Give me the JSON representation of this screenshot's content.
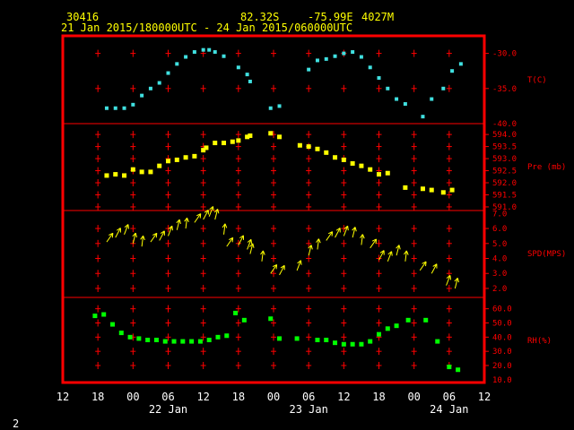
{
  "header": {
    "station": "30416",
    "lat": "82.32S",
    "lon": "-75.99E",
    "elev": "4027M",
    "period": "21 Jan 2015/180000UTC - 24 Jan 2015/060000UTC"
  },
  "page_number": "2",
  "colors": {
    "frame": "#ff0000",
    "temperature": "#40e0e0",
    "pressure": "#ffff00",
    "wind": "#ffff00",
    "rh": "#00ff00",
    "text": "#ffffff",
    "header_text": "#ffff00"
  },
  "chart_data": {
    "type": "scatter",
    "x_axis": {
      "range_hours": [
        -6,
        66
      ],
      "tick_labels": [
        "12",
        "18",
        "00",
        "06",
        "12",
        "18",
        "00",
        "06",
        "12",
        "18",
        "00",
        "06",
        "12"
      ],
      "date_labels": [
        "22 Jan",
        "23 Jan",
        "24 Jan"
      ]
    },
    "panels": [
      {
        "name": "T(C)",
        "range": [
          -40,
          -27.5
        ],
        "ticks": [
          "-30.0",
          "-35.0",
          "-40.0"
        ],
        "tick_values": [
          -30,
          -35,
          -40
        ],
        "points": [
          [
            1.5,
            -37.8
          ],
          [
            3,
            -37.8
          ],
          [
            4.5,
            -37.8
          ],
          [
            6,
            -37.3
          ],
          [
            7.5,
            -36.0
          ],
          [
            9,
            -35.0
          ],
          [
            10.5,
            -34.2
          ],
          [
            12,
            -32.8
          ],
          [
            13.5,
            -31.5
          ],
          [
            15,
            -30.5
          ],
          [
            16.5,
            -29.8
          ],
          [
            18,
            -29.5
          ],
          [
            19,
            -29.5
          ],
          [
            20,
            -29.8
          ],
          [
            21.5,
            -30.4
          ],
          [
            24,
            -32
          ],
          [
            25.5,
            -33
          ],
          [
            26,
            -34
          ],
          [
            29.5,
            -37.8
          ],
          [
            31,
            -37.5
          ],
          [
            36,
            -32.3
          ],
          [
            37.5,
            -31
          ],
          [
            39,
            -30.8
          ],
          [
            40.5,
            -30.4
          ],
          [
            42,
            -30
          ],
          [
            43.5,
            -29.8
          ],
          [
            45,
            -30.5
          ],
          [
            46.5,
            -32
          ],
          [
            48,
            -33.5
          ],
          [
            49.5,
            -35
          ],
          [
            51,
            -36.5
          ],
          [
            52.5,
            -37.2
          ],
          [
            55.5,
            -39
          ],
          [
            57,
            -36.5
          ],
          [
            59,
            -35
          ],
          [
            60.5,
            -32.5
          ],
          [
            62,
            -31.5
          ]
        ]
      },
      {
        "name": "Pre (mb)",
        "range": [
          590.85,
          594.45
        ],
        "ticks": [
          "594.0",
          "593.5",
          "593.0",
          "592.5",
          "592.0",
          "591.5",
          "591.0"
        ],
        "tick_values": [
          594,
          593.5,
          593,
          592.5,
          592,
          591.5,
          591
        ],
        "points": [
          [
            1.5,
            592.3
          ],
          [
            3,
            592.35
          ],
          [
            4.5,
            592.3
          ],
          [
            6,
            592.55
          ],
          [
            7.5,
            592.45
          ],
          [
            9,
            592.45
          ],
          [
            10.5,
            592.7
          ],
          [
            12,
            592.9
          ],
          [
            13.5,
            592.95
          ],
          [
            15,
            593.05
          ],
          [
            16.5,
            593.1
          ],
          [
            18,
            593.35
          ],
          [
            18.5,
            593.45
          ],
          [
            20,
            593.65
          ],
          [
            21.5,
            593.65
          ],
          [
            23,
            593.7
          ],
          [
            24,
            593.75
          ],
          [
            25.5,
            593.9
          ],
          [
            26,
            593.95
          ],
          [
            29.5,
            594.05
          ],
          [
            31,
            593.9
          ],
          [
            34.5,
            593.55
          ],
          [
            36,
            593.5
          ],
          [
            37.5,
            593.4
          ],
          [
            39,
            593.25
          ],
          [
            40.5,
            593.05
          ],
          [
            42,
            592.95
          ],
          [
            43.5,
            592.8
          ],
          [
            45,
            592.7
          ],
          [
            46.5,
            592.55
          ],
          [
            48,
            592.35
          ],
          [
            49.5,
            592.4
          ],
          [
            52.5,
            591.8
          ],
          [
            55.5,
            591.75
          ],
          [
            57,
            591.7
          ],
          [
            59,
            591.6
          ],
          [
            60.5,
            591.7
          ]
        ]
      },
      {
        "name": "SPD(MPS)",
        "range": [
          1.4,
          7.2
        ],
        "ticks": [
          "7.0",
          "6.0",
          "5.0",
          "4.0",
          "3.0",
          "2.0"
        ],
        "tick_values": [
          7,
          6,
          5,
          4,
          3,
          2
        ],
        "points": [
          [
            1.5,
            5.1
          ],
          [
            3,
            5.4
          ],
          [
            4.5,
            5.6
          ],
          [
            6,
            5.0
          ],
          [
            7.5,
            4.8
          ],
          [
            9,
            5.1
          ],
          [
            10.5,
            5.2
          ],
          [
            12,
            5.5
          ],
          [
            13.5,
            5.9
          ],
          [
            15,
            6.0
          ],
          [
            16.5,
            6.4
          ],
          [
            18,
            6.6
          ],
          [
            19,
            6.8
          ],
          [
            20,
            6.6
          ],
          [
            21.5,
            5.6
          ],
          [
            22,
            4.8
          ],
          [
            24,
            4.9
          ],
          [
            25.5,
            4.6
          ],
          [
            26,
            4.3
          ],
          [
            28,
            3.8
          ],
          [
            29.5,
            3.0
          ],
          [
            31,
            2.9
          ],
          [
            34,
            3.2
          ],
          [
            36,
            4.2
          ],
          [
            37.5,
            4.6
          ],
          [
            39,
            5.2
          ],
          [
            40.5,
            5.4
          ],
          [
            42,
            5.5
          ],
          [
            43.5,
            5.4
          ],
          [
            45,
            4.9
          ],
          [
            46.5,
            4.7
          ],
          [
            48,
            3.9
          ],
          [
            49.5,
            3.8
          ],
          [
            51,
            4.2
          ],
          [
            52.5,
            3.8
          ],
          [
            55,
            3.2
          ],
          [
            57,
            3.0
          ],
          [
            59.5,
            2.2
          ],
          [
            61,
            2.0
          ]
        ]
      },
      {
        "name": "RH(%)",
        "range": [
          8,
          68
        ],
        "ticks": [
          "60.0",
          "50.0",
          "40.0",
          "30.0",
          "20.0",
          "10.0"
        ],
        "tick_values": [
          60,
          50,
          40,
          30,
          20,
          10
        ],
        "points": [
          [
            -0.5,
            55
          ],
          [
            1,
            56
          ],
          [
            2.5,
            49
          ],
          [
            4,
            43
          ],
          [
            5.5,
            40
          ],
          [
            7,
            39
          ],
          [
            8.5,
            38
          ],
          [
            10,
            38
          ],
          [
            11.5,
            37
          ],
          [
            13,
            37
          ],
          [
            14.5,
            37
          ],
          [
            16,
            37
          ],
          [
            17.5,
            37
          ],
          [
            19,
            38
          ],
          [
            20.5,
            40
          ],
          [
            22,
            41
          ],
          [
            23.5,
            57
          ],
          [
            25,
            52
          ],
          [
            29.5,
            53
          ],
          [
            31,
            39
          ],
          [
            34,
            39
          ],
          [
            37.5,
            38
          ],
          [
            39,
            38
          ],
          [
            40.5,
            36
          ],
          [
            42,
            35
          ],
          [
            43.5,
            35
          ],
          [
            45,
            35
          ],
          [
            46.5,
            37
          ],
          [
            48,
            42
          ],
          [
            49.5,
            46
          ],
          [
            51,
            48
          ],
          [
            53,
            52
          ],
          [
            56,
            52
          ],
          [
            58,
            37
          ],
          [
            60,
            19
          ],
          [
            61.5,
            17
          ]
        ]
      }
    ]
  }
}
